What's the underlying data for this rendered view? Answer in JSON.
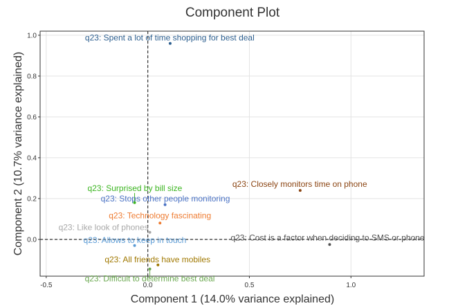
{
  "chart_data": {
    "type": "scatter",
    "title": "Component Plot",
    "xlabel": "Component 1 (14.0% variance explained)",
    "ylabel": "Component 2 (10.7% variance explained)",
    "xlim": [
      -0.53,
      1.36
    ],
    "ylim": [
      -0.18,
      1.02
    ],
    "x_ticks": [
      -0.5,
      0.0,
      0.5,
      1.0
    ],
    "x_tick_labels": [
      "-0.5",
      "0.0",
      "0.5",
      "1.0"
    ],
    "y_ticks": [
      0.0,
      0.2,
      0.4,
      0.6,
      0.8,
      1.0
    ],
    "y_tick_labels": [
      "0.0",
      "0.2",
      "0.4",
      "0.6",
      "0.8",
      "1.0"
    ],
    "grid": true,
    "reference_lines": {
      "x": 0,
      "y": 0
    },
    "points": [
      {
        "label": "q23: Spent a lot of time shopping for best deal",
        "x": 0.11,
        "y": 0.96,
        "color": "#2d5f8f"
      },
      {
        "label": "q23: Closely monitors time on phone",
        "x": 0.75,
        "y": 0.24,
        "color": "#8b4513"
      },
      {
        "label": "q23: Surprised by bill size",
        "x": -0.065,
        "y": 0.18,
        "color": "#3cb521"
      },
      {
        "label": "q23: Stops other people monitoring",
        "x": 0.085,
        "y": 0.17,
        "color": "#4a72c4"
      },
      {
        "label": "q23: Technology fascinating",
        "x": 0.06,
        "y": 0.08,
        "color": "#ee7c32"
      },
      {
        "label": "q23: Like look of phones",
        "x": 0.01,
        "y": 0.035,
        "color": "#a8a8a8"
      },
      {
        "label": "q23: Allows to keep in touch",
        "x": -0.065,
        "y": -0.03,
        "color": "#5b9bd5"
      },
      {
        "label": "q23: Cost is a factor when deciding to SMS or phone",
        "x": 0.895,
        "y": -0.025,
        "color": "#505050"
      },
      {
        "label": "q23: All friends have mobiles",
        "x": 0.05,
        "y": -0.125,
        "color": "#a07800"
      },
      {
        "label": "q23: Difficult to determine best deal",
        "x": 0.01,
        "y": -0.145,
        "color": "#6aa84f"
      }
    ]
  }
}
